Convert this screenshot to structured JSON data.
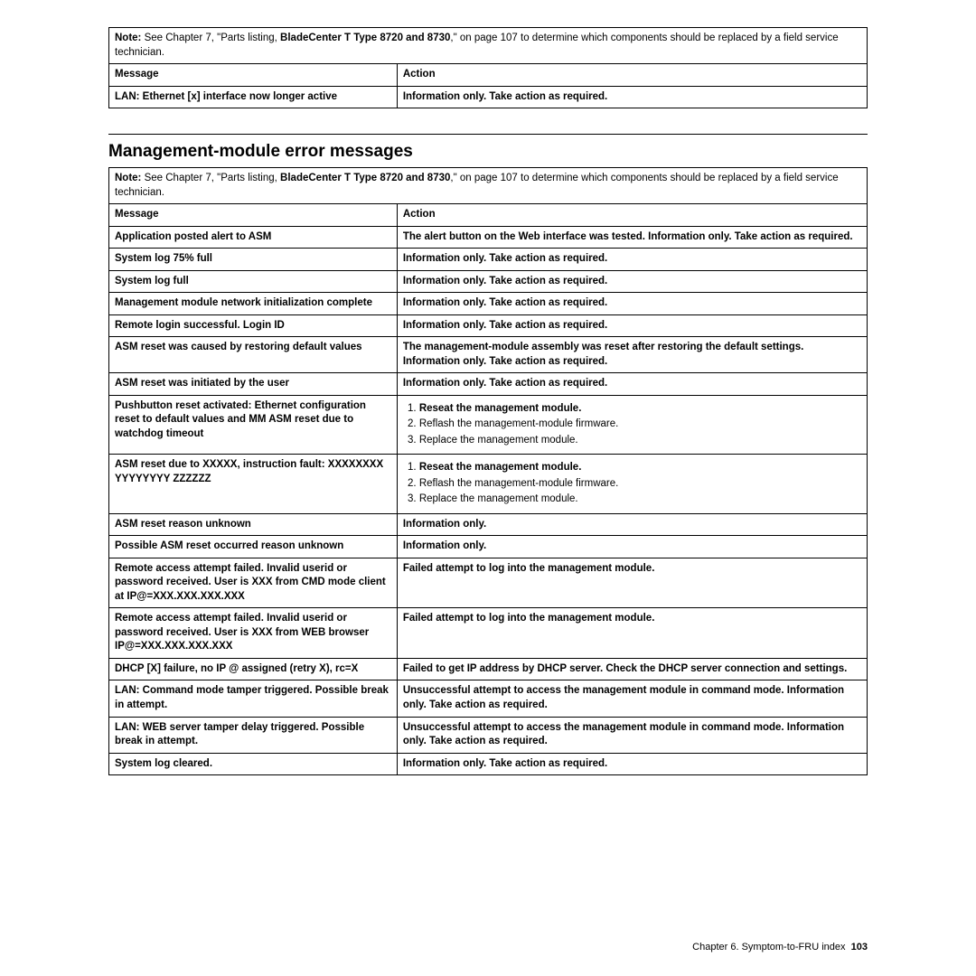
{
  "table1": {
    "note_prefix": "Note:",
    "note_text1": " See Chapter 7, \"Parts listing, ",
    "note_bold": "BladeCenter T Type 8720 and 8730",
    "note_text2": ",\" on page 107 to determine which components should be replaced by a field service technician.",
    "h_msg": "Message",
    "h_action": "Action",
    "r1_msg": "LAN: Ethernet [x] interface now longer active",
    "r1_action": "Information only. Take action as required."
  },
  "section_title": "Management-module error messages",
  "table2": {
    "note_prefix": "Note:",
    "note_text1": " See Chapter 7, \"Parts listing, ",
    "note_bold": "BladeCenter T Type 8720 and 8730",
    "note_text2": ",\" on page 107 to determine which components should be replaced by a field service technician.",
    "h_msg": "Message",
    "h_action": "Action",
    "rows": [
      {
        "msg": "Application posted alert to ASM",
        "action_bold": "The alert button on the Web interface was tested. Information only. Take action as required."
      },
      {
        "msg": "System log 75% full",
        "action_bold": "Information only. Take action as required."
      },
      {
        "msg": "System log full",
        "action_bold": "Information only. Take action as required."
      },
      {
        "msg": "Management module network initialization complete",
        "action_bold": "Information only. Take action as required."
      },
      {
        "msg": "Remote login successful. Login ID",
        "action_bold": "Information only. Take action as required."
      },
      {
        "msg": "ASM reset was caused by restoring default values",
        "action_bold": "The management-module assembly was reset after restoring the default settings. Information only. Take action as required."
      },
      {
        "msg": "ASM reset was initiated by the user",
        "action_bold": "Information only. Take action as required."
      }
    ],
    "list_row1": {
      "msg": "Pushbutton reset activated: Ethernet configuration reset to default values and MM ASM reset due to watchdog timeout",
      "item1": "Reseat the management module.",
      "item2": "Reflash the management-module firmware.",
      "item3": "Replace the management module."
    },
    "list_row2": {
      "msg": "ASM reset due to XXXXX, instruction fault: XXXXXXXX YYYYYYYY ZZZZZZ",
      "item1": "Reseat the management module.",
      "item2": "Reflash the management-module firmware.",
      "item3": "Replace the management module."
    },
    "rows2": [
      {
        "msg": "ASM reset reason unknown",
        "action_bold": "Information only."
      },
      {
        "msg": "Possible ASM reset occurred reason unknown",
        "action_bold": "Information only."
      },
      {
        "msg": "Remote access attempt failed. Invalid userid or password received. User is XXX from CMD mode client at IP@=XXX.XXX.XXX.XXX",
        "action_bold": "Failed attempt to log into the management module."
      },
      {
        "msg": "Remote access attempt failed. Invalid userid or password received. User is XXX from WEB browser IP@=XXX.XXX.XXX.XXX",
        "action_bold": "Failed attempt to log into the management module."
      },
      {
        "msg": "DHCP [X] failure, no IP @ assigned (retry X), rc=X",
        "action_bold": "Failed to get IP address by DHCP server. Check the DHCP server connection and settings."
      },
      {
        "msg": "LAN: Command mode tamper triggered. Possible break in attempt.",
        "action_bold": "Unsuccessful attempt to access the management module in command mode. Information only. Take action as required."
      },
      {
        "msg": "LAN: WEB server tamper delay triggered. Possible break in attempt.",
        "action_bold": "Unsuccessful attempt to access the management module in command mode. Information only. Take action as required."
      },
      {
        "msg": "System log cleared.",
        "action_bold": "Information only. Take action as required."
      }
    ]
  },
  "footer_text": "Chapter 6. Symptom-to-FRU index",
  "footer_page": "103"
}
